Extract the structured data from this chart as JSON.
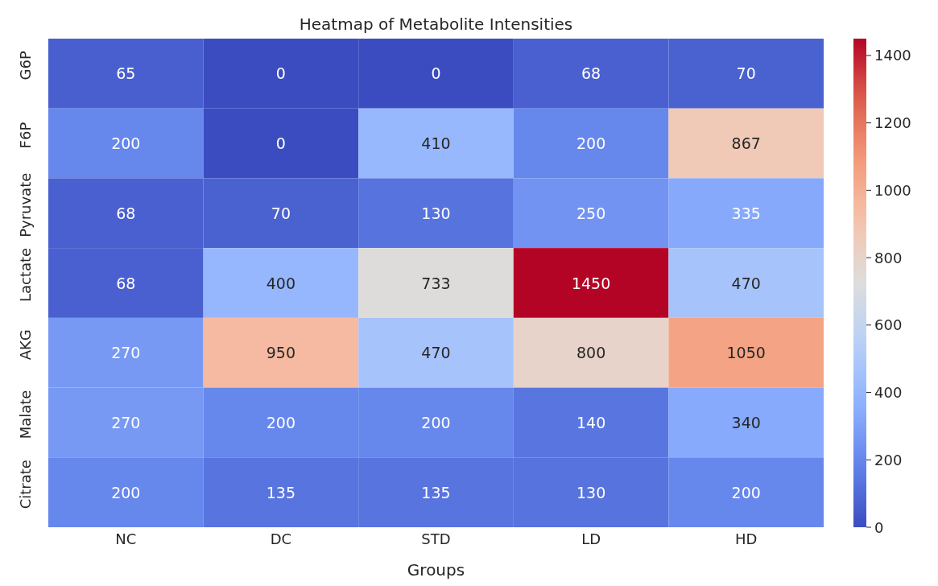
{
  "chart_data": {
    "type": "heatmap",
    "title": "Heatmap of Metabolite Intensities",
    "xlabel": "Groups",
    "categories": [
      "NC",
      "DC",
      "STD",
      "LD",
      "HD"
    ],
    "y_categories": [
      "G6P",
      "F6P",
      "Pyruvate",
      "Lactate",
      "AKG",
      "Malate",
      "Citrate"
    ],
    "cells": [
      [
        65,
        0,
        0,
        68,
        70
      ],
      [
        200,
        0,
        410,
        200,
        867
      ],
      [
        68,
        70,
        130,
        250,
        335
      ],
      [
        68,
        400,
        733,
        1450,
        470
      ],
      [
        270,
        950,
        470,
        800,
        1050
      ],
      [
        270,
        200,
        200,
        140,
        340
      ],
      [
        200,
        135,
        135,
        130,
        200
      ]
    ],
    "data_labels": true,
    "clim": [
      0,
      1450
    ],
    "cticks": [
      0,
      200,
      400,
      600,
      800,
      1000,
      1200,
      1400
    ]
  }
}
